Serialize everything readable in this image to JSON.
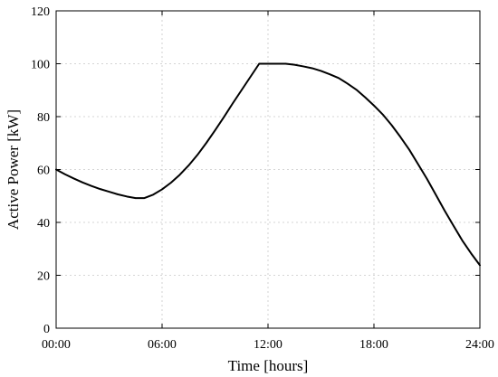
{
  "chart_data": {
    "type": "line",
    "title": "",
    "xlabel": "Time [hours]",
    "ylabel": "Active Power [kW]",
    "xlim": [
      0,
      24
    ],
    "ylim": [
      0,
      120
    ],
    "x_ticks": [
      {
        "value": 0,
        "label": "00:00"
      },
      {
        "value": 6,
        "label": "06:00"
      },
      {
        "value": 12,
        "label": "12:00"
      },
      {
        "value": 18,
        "label": "18:00"
      },
      {
        "value": 24,
        "label": "24:00"
      }
    ],
    "y_ticks": [
      {
        "value": 0,
        "label": "0"
      },
      {
        "value": 20,
        "label": "20"
      },
      {
        "value": 40,
        "label": "40"
      },
      {
        "value": 60,
        "label": "60"
      },
      {
        "value": 80,
        "label": "80"
      },
      {
        "value": 100,
        "label": "100"
      },
      {
        "value": 120,
        "label": "120"
      }
    ],
    "grid": true,
    "series": [
      {
        "color": "#000000",
        "x": [
          0,
          0.5,
          1,
          1.5,
          2,
          2.5,
          3,
          3.5,
          4,
          4.5,
          5,
          5.5,
          6,
          6.5,
          7,
          7.5,
          8,
          8.5,
          9,
          9.5,
          10,
          10.5,
          11,
          11.5,
          12,
          12.5,
          13,
          13.5,
          14,
          14.5,
          15,
          15.5,
          16,
          16.5,
          17,
          17.5,
          18,
          18.5,
          19,
          19.5,
          20,
          20.5,
          21,
          21.5,
          22,
          22.5,
          23,
          23.5,
          24
        ],
        "y": [
          60,
          58.2,
          56.6,
          55.1,
          53.8,
          52.6,
          51.6,
          50.6,
          49.8,
          49.2,
          49.2,
          50.5,
          52.5,
          55,
          58,
          61.5,
          65.5,
          70,
          74.8,
          79.8,
          85,
          90,
          95,
          100,
          100,
          100,
          100,
          99.6,
          99,
          98.3,
          97.3,
          96,
          94.6,
          92.5,
          90.2,
          87.3,
          84.2,
          80.8,
          76.8,
          72.3,
          67.5,
          62,
          56.5,
          50.5,
          44.5,
          38.8,
          33.2,
          28.3,
          23.8
        ]
      }
    ]
  }
}
